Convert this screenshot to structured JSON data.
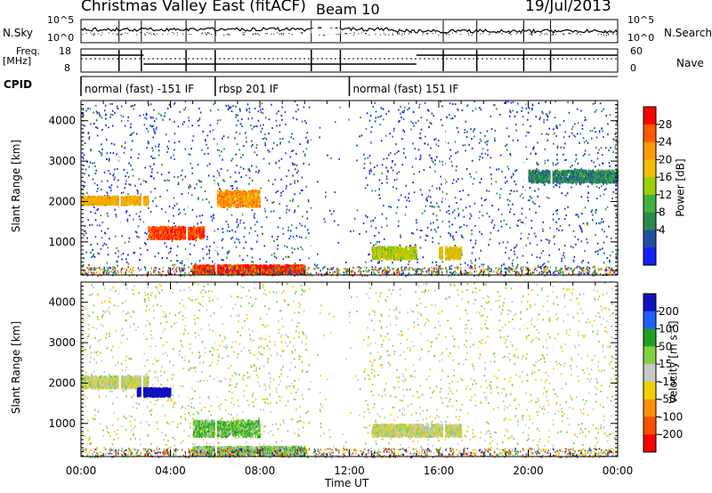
{
  "header": {
    "title": "Christmas Valley East (fitACF)",
    "beam": "Beam 10",
    "date": "19/Jul/2013"
  },
  "noise_panel": {
    "left_label": "N.Sky",
    "right_label": "N.Search",
    "y_ticks": [
      "10^5",
      "10^0"
    ]
  },
  "freq_panel": {
    "left_label_line1": "Freq.",
    "left_label_line2": "[MHz]",
    "left_ticks": [
      "18",
      "8"
    ],
    "right_label": "Nave",
    "right_ticks": [
      "60",
      "0"
    ]
  },
  "cpid_panel": {
    "label": "CPID",
    "segments": [
      {
        "text": "normal (fast) -151 IF",
        "start_hour": 0
      },
      {
        "text": "rbsp 201 IF",
        "start_hour": 6
      },
      {
        "text": "normal (fast) 151 IF",
        "start_hour": 12
      }
    ]
  },
  "power_panel": {
    "ylabel": "Slant Range [km]",
    "y_ticks": [
      1000,
      2000,
      3000,
      4000
    ],
    "colorbar_label": "Power [dB]",
    "colorbar_ticks": [
      28,
      24,
      20,
      16,
      12,
      8,
      4
    ],
    "colors": [
      "#ff0000",
      "#ff5a00",
      "#ff9a00",
      "#f0c000",
      "#9ad000",
      "#40b040",
      "#2a8c4a",
      "#2050a0",
      "#1020ff"
    ]
  },
  "velocity_panel": {
    "ylabel": "Slant Range [km]",
    "y_ticks": [
      1000,
      2000,
      3000,
      4000
    ],
    "colorbar_label": "Velocity [m s⁻¹]",
    "colorbar_ticks": [
      200,
      100,
      50,
      15,
      -15,
      -50,
      -100,
      -200
    ],
    "colors": [
      "#1010c0",
      "#2060ff",
      "#20a020",
      "#80d040",
      "#c8c8c8",
      "#f0d000",
      "#ff9000",
      "#ff5000",
      "#ff0000"
    ]
  },
  "x_axis": {
    "label": "Time UT",
    "ticks": [
      "00:00",
      "04:00",
      "08:00",
      "12:00",
      "16:00",
      "20:00",
      "00:00"
    ]
  },
  "chart_data": [
    {
      "type": "heatmap",
      "title": "Power",
      "x_range_hours": [
        0,
        24
      ],
      "ylim": [
        180,
        4500
      ],
      "colorbar_range": [
        0,
        30
      ],
      "features": [
        {
          "name": "band",
          "from_hour": 0,
          "to_hour": 3,
          "range_km": [
            1950,
            2150
          ],
          "value": 20
        },
        {
          "name": "band",
          "from_hour": 3,
          "to_hour": 5.5,
          "range_km": [
            1100,
            1400
          ],
          "value": 26
        },
        {
          "name": "band",
          "from_hour": 6,
          "to_hour": 8,
          "range_km": [
            1900,
            2300
          ],
          "value": 22
        },
        {
          "name": "band",
          "from_hour": 5,
          "to_hour": 10,
          "range_km": [
            250,
            450
          ],
          "value": 27
        },
        {
          "name": "band",
          "from_hour": 13,
          "to_hour": 15,
          "range_km": [
            600,
            900
          ],
          "value": 16
        },
        {
          "name": "band",
          "from_hour": 16,
          "to_hour": 17,
          "range_km": [
            600,
            900
          ],
          "value": 18
        },
        {
          "name": "band",
          "from_hour": 20,
          "to_hour": 24,
          "range_km": [
            2500,
            2800
          ],
          "value": 8
        }
      ]
    },
    {
      "type": "heatmap",
      "title": "Velocity",
      "x_range_hours": [
        0,
        24
      ],
      "ylim": [
        180,
        4500
      ],
      "colorbar_range": [
        -200,
        200
      ],
      "features": [
        {
          "name": "band",
          "from_hour": 0,
          "to_hour": 3,
          "range_km": [
            1900,
            2200
          ],
          "value": 0
        },
        {
          "name": "band",
          "from_hour": 2.5,
          "to_hour": 4,
          "range_km": [
            1700,
            1900
          ],
          "value": 220
        },
        {
          "name": "band",
          "from_hour": 5,
          "to_hour": 8,
          "range_km": [
            700,
            1100
          ],
          "value": 60
        },
        {
          "name": "band",
          "from_hour": 5,
          "to_hour": 10,
          "range_km": [
            250,
            450
          ],
          "value": 40
        },
        {
          "name": "band",
          "from_hour": 13,
          "to_hour": 17,
          "range_km": [
            700,
            1000
          ],
          "value": 0
        }
      ]
    }
  ]
}
